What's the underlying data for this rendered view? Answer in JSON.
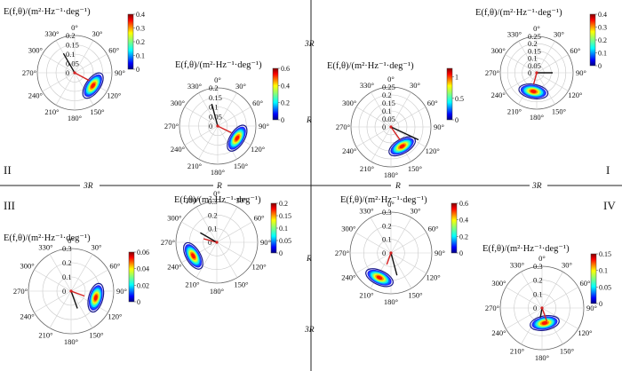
{
  "figure": {
    "quadrant_labels": [
      "II",
      "I",
      "III",
      "IV"
    ],
    "distance_labels": {
      "top_3R": "3R",
      "top_R": "R",
      "left_3R": "3R",
      "left_R": "R",
      "right_R": "R",
      "right_3R": "3R",
      "bottom_R": "R",
      "bottom_3R": "3R"
    }
  },
  "chart_data": [
    {
      "id": "p1",
      "type": "polar-contour",
      "title": "E(f,θ)/(m²·Hz⁻¹·deg⁻¹)",
      "radial_ticks": [
        "0",
        "0.05",
        "0.1",
        "0.15",
        "0.2"
      ],
      "angle_labels": [
        "0°",
        "30°",
        "60°",
        "90°",
        "120°",
        "150°",
        "180°",
        "210°",
        "240°",
        "270°",
        "300°",
        "330°"
      ],
      "colorbar": {
        "min": 0,
        "max": 0.4,
        "ticks": [
          "0",
          "0.1",
          "0.2",
          "0.3",
          "0.4"
        ]
      },
      "peak": {
        "freq": 0.12,
        "dir_deg": 125
      },
      "vectors": [
        {
          "color": "#d62222",
          "dir_deg": 118,
          "len": 0.09
        },
        {
          "color": "#111111",
          "dir_deg": 330,
          "len": 0.12
        }
      ]
    },
    {
      "id": "p2",
      "type": "polar-contour",
      "title": "E(f,θ)/(m²·Hz⁻¹·deg⁻¹)",
      "radial_ticks": [
        "0",
        "0.05",
        "0.1",
        "0.15",
        "0.2"
      ],
      "angle_labels": [
        "0°",
        "30°",
        "60°",
        "90°",
        "120°",
        "150°",
        "180°",
        "210°",
        "240°",
        "270°",
        "300°",
        "330°"
      ],
      "colorbar": {
        "min": 0,
        "max": 0.6,
        "ticks": [
          "0",
          "0.2",
          "0.4",
          "0.6"
        ]
      },
      "peak": {
        "freq": 0.12,
        "dir_deg": 122
      },
      "vectors": [
        {
          "color": "#d62222",
          "dir_deg": 116,
          "len": 0.08
        },
        {
          "color": "#111111",
          "dir_deg": 345,
          "len": 0.12
        }
      ]
    },
    {
      "id": "p3",
      "type": "polar-contour",
      "title": "E(f,θ)/(m²·Hz⁻¹·deg⁻¹)",
      "radial_ticks": [
        "0",
        "0.05",
        "0.1",
        "0.15",
        "0.2",
        "0.25"
      ],
      "angle_labels": [
        "0°",
        "30°",
        "60°",
        "90°",
        "120°",
        "150°",
        "180°",
        "210°",
        "240°",
        "270°",
        "300°",
        "330°"
      ],
      "colorbar": {
        "min": 0,
        "max": 1.2,
        "ticks": [
          "0",
          "0.5",
          "1"
        ]
      },
      "peak": {
        "freq": 0.14,
        "dir_deg": 150
      },
      "vectors": [
        {
          "color": "#d62222",
          "dir_deg": 145,
          "len": 0.1
        },
        {
          "color": "#111111",
          "dir_deg": 115,
          "len": 0.19
        }
      ]
    },
    {
      "id": "p4",
      "type": "polar-contour",
      "title": "E(f,θ)/(m²·Hz⁻¹·deg⁻¹)",
      "radial_ticks": [
        "0",
        "0.05",
        "0.1",
        "0.15",
        "0.2",
        "0.25"
      ],
      "angle_labels": [
        "0°",
        "30°",
        "60°",
        "90°",
        "120°",
        "150°",
        "180°",
        "210°",
        "240°",
        "270°",
        "300°",
        "330°"
      ],
      "colorbar": {
        "min": 0,
        "max": 0.4,
        "ticks": [
          "0",
          "0.1",
          "0.2",
          "0.3",
          "0.4"
        ]
      },
      "peak": {
        "freq": 0.13,
        "dir_deg": 190
      },
      "vectors": [
        {
          "color": "#d62222",
          "dir_deg": 195,
          "len": 0.08
        },
        {
          "color": "#111111",
          "dir_deg": 90,
          "len": 0.11
        }
      ]
    },
    {
      "id": "p5",
      "type": "polar-contour",
      "title": "E(f,θ)/(m²·Hz⁻¹·deg⁻¹)",
      "radial_ticks": [
        "0",
        "0.1",
        "0.2",
        "0.3"
      ],
      "angle_labels": [
        "0°",
        "30°",
        "60°",
        "90°",
        "120°",
        "150°",
        "180°",
        "210°",
        "240°",
        "270°",
        "300°",
        "330°"
      ],
      "colorbar": {
        "min": 0,
        "max": 0.06,
        "ticks": [
          "0",
          "0.02",
          "0.04",
          "0.06"
        ]
      },
      "peak": {
        "freq": 0.18,
        "dir_deg": 105
      },
      "vectors": [
        {
          "color": "#d62222",
          "dir_deg": 110,
          "len": 0.1
        },
        {
          "color": "#111111",
          "dir_deg": 160,
          "len": 0.13
        }
      ]
    },
    {
      "id": "p6",
      "type": "polar-contour",
      "title": "E(f,θ)/(m²·Hz⁻¹·deg⁻¹)",
      "radial_ticks": [
        "0",
        "0.1",
        "0.2",
        "0.3"
      ],
      "angle_labels": [
        "0°",
        "30°",
        "60°",
        "90°",
        "120°",
        "150°",
        "180°",
        "210°",
        "240°",
        "270°",
        "300°",
        "330°"
      ],
      "colorbar": {
        "min": 0,
        "max": 0.2,
        "ticks": [
          "0",
          "0.05",
          "0.1",
          "0.15",
          "0.2"
        ]
      },
      "peak": {
        "freq": 0.2,
        "dir_deg": 240
      },
      "vectors": [
        {
          "color": "#d62222",
          "dir_deg": 285,
          "len": 0.1
        },
        {
          "color": "#111111",
          "dir_deg": 300,
          "len": 0.14
        }
      ]
    },
    {
      "id": "p7",
      "type": "polar-contour",
      "title": "E(f,θ)/(m²·Hz⁻¹·deg⁻¹)",
      "radial_ticks": [
        "0",
        "0.1",
        "0.2",
        "0.3"
      ],
      "angle_labels": [
        "0°",
        "30°",
        "60°",
        "90°",
        "120°",
        "150°",
        "180°",
        "210°",
        "240°",
        "270°",
        "300°",
        "330°"
      ],
      "colorbar": {
        "min": 0,
        "max": 0.6,
        "ticks": [
          "0",
          "0.2",
          "0.4",
          "0.6"
        ]
      },
      "peak": {
        "freq": 0.2,
        "dir_deg": 205
      },
      "vectors": [
        {
          "color": "#d62222",
          "dir_deg": 200,
          "len": 0.09
        },
        {
          "color": "#111111",
          "dir_deg": 165,
          "len": 0.17
        }
      ]
    },
    {
      "id": "p8",
      "type": "polar-contour",
      "title": "E(f,θ)/(m²·Hz⁻¹·deg⁻¹)",
      "radial_ticks": [
        "0",
        "0.1",
        "0.2",
        "0.3"
      ],
      "angle_labels": [
        "0°",
        "30°",
        "60°",
        "90°",
        "120°",
        "150°",
        "180°",
        "210°",
        "240°",
        "270°",
        "300°",
        "330°"
      ],
      "colorbar": {
        "min": 0,
        "max": 0.15,
        "ticks": [
          "0",
          "0.05",
          "0.1",
          "0.15"
        ]
      },
      "peak": {
        "freq": 0.11,
        "dir_deg": 170
      },
      "vectors": [
        {
          "color": "#d62222",
          "dir_deg": 160,
          "len": 0.1
        },
        {
          "color": "#111111",
          "dir_deg": 190,
          "len": 0.07
        }
      ]
    }
  ]
}
